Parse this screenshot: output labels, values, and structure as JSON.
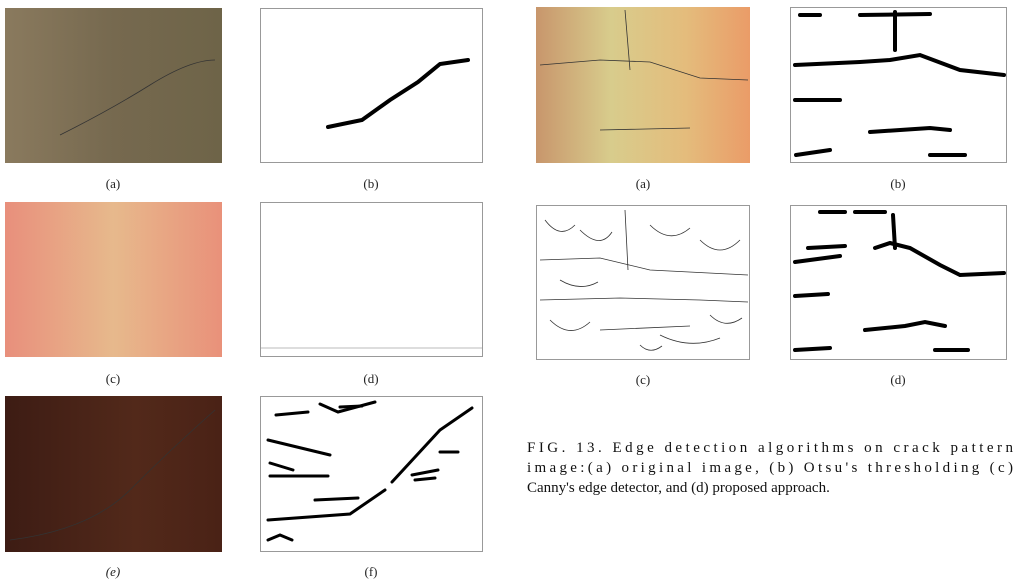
{
  "left_figure": {
    "labels": [
      "(a)",
      "(b)",
      "(c)",
      "(d)",
      "(e)",
      "(f)"
    ]
  },
  "right_figure": {
    "labels": [
      "(a)",
      "(b)",
      "(c)",
      "(d)"
    ]
  },
  "caption": {
    "lines": [
      "FIG. 13. Edge detection algorithms on crack pattern",
      "image:(a) original image, (b) Otsu's thresholding (c)",
      "Canny's edge detector, and (d) proposed approach."
    ]
  }
}
